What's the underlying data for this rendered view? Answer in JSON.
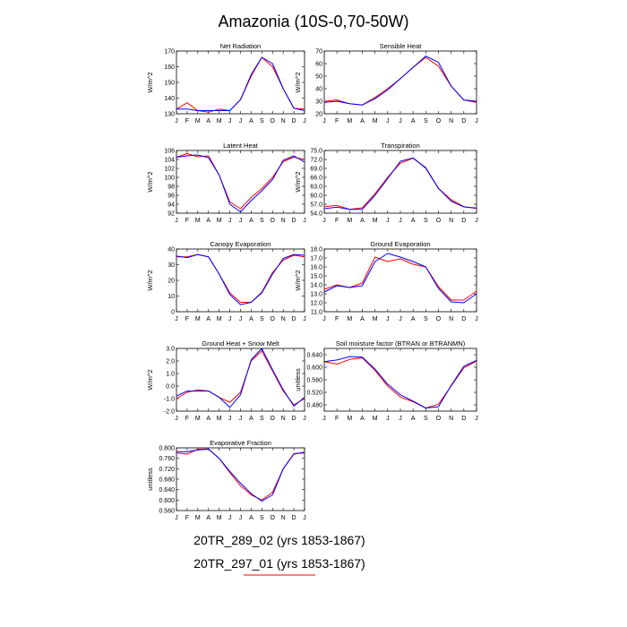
{
  "figure_title": "Amazonia (10S-0,70-50W)",
  "months": [
    "J",
    "F",
    "M",
    "A",
    "M",
    "J",
    "J",
    "A",
    "S",
    "O",
    "N",
    "D",
    "J"
  ],
  "legend": {
    "entries": [
      {
        "label": "20TR_289_02 (yrs 1853-1867)",
        "color": "#ff0000"
      },
      {
        "label": "20TR_297_01 (yrs 1853-1867)",
        "color": "#0000ff"
      }
    ]
  },
  "chart_data": [
    {
      "type": "line",
      "title": "Net Radiation",
      "ylabel": "W/m^2",
      "ylim": [
        130,
        170
      ],
      "yticks": [
        "130",
        "140",
        "150",
        "160",
        "170"
      ],
      "ytick_values": [
        130,
        140,
        150,
        160,
        170
      ],
      "x": [
        "J",
        "F",
        "M",
        "A",
        "M",
        "J",
        "J",
        "A",
        "S",
        "O",
        "N",
        "D",
        "J"
      ],
      "series": [
        {
          "name": "20TR_289_02",
          "color": "#ff0000",
          "values": [
            133,
            137,
            132,
            131,
            133,
            132,
            139,
            154,
            166,
            160,
            146,
            133.5,
            133
          ]
        },
        {
          "name": "20TR_297_01",
          "color": "#0000ff",
          "values": [
            133,
            133,
            132,
            132,
            132,
            132,
            139,
            155,
            166,
            162,
            146,
            133.5,
            132
          ]
        }
      ]
    },
    {
      "type": "line",
      "title": "Sensible Heat",
      "ylabel": "W/m^2",
      "ylim": [
        20,
        70
      ],
      "yticks": [
        "20",
        "30",
        "40",
        "50",
        "60",
        "70"
      ],
      "ytick_values": [
        20,
        30,
        40,
        50,
        60,
        70
      ],
      "x": [
        "J",
        "F",
        "M",
        "A",
        "M",
        "J",
        "J",
        "A",
        "S",
        "O",
        "N",
        "D",
        "J"
      ],
      "series": [
        {
          "name": "20TR_289_02",
          "color": "#ff0000",
          "values": [
            30,
            31,
            28,
            27,
            33,
            40,
            48,
            57,
            65,
            58,
            42,
            31,
            29
          ]
        },
        {
          "name": "20TR_297_01",
          "color": "#0000ff",
          "values": [
            29,
            30,
            28,
            27,
            32,
            39,
            48,
            57,
            66,
            61,
            42,
            31,
            30
          ]
        }
      ]
    },
    {
      "type": "line",
      "title": "Latent Heat",
      "ylabel": "W/m^2",
      "ylim": [
        92,
        106
      ],
      "yticks": [
        "92",
        "94",
        "96",
        "98",
        "100",
        "102",
        "104",
        "106"
      ],
      "ytick_values": [
        92,
        94,
        96,
        98,
        100,
        102,
        104,
        106
      ],
      "x": [
        "J",
        "F",
        "M",
        "A",
        "M",
        "J",
        "J",
        "A",
        "S",
        "O",
        "N",
        "D",
        "J"
      ],
      "series": [
        {
          "name": "20TR_289_02",
          "color": "#ff0000",
          "values": [
            104.5,
            105.3,
            104.6,
            104.8,
            100.5,
            94.5,
            93,
            95.5,
            97.5,
            100,
            103.5,
            104.5,
            104
          ]
        },
        {
          "name": "20TR_297_01",
          "color": "#0000ff",
          "values": [
            104.5,
            104.8,
            105,
            104.4,
            100.5,
            94,
            92.3,
            94.8,
            97,
            99.5,
            103.8,
            104.8,
            103.4
          ]
        }
      ]
    },
    {
      "type": "line",
      "title": "Transpiration",
      "ylabel": "W/m^2",
      "ylim": [
        54,
        75
      ],
      "yticks": [
        "54.0",
        "57.0",
        "60.0",
        "63.0",
        "66.0",
        "69.0",
        "72.0",
        "75.0"
      ],
      "ytick_values": [
        54,
        57,
        60,
        63,
        66,
        69,
        72,
        75
      ],
      "x": [
        "J",
        "F",
        "M",
        "A",
        "M",
        "J",
        "J",
        "A",
        "S",
        "O",
        "N",
        "D",
        "J"
      ],
      "series": [
        {
          "name": "20TR_289_02",
          "color": "#ff0000",
          "values": [
            56.2,
            56.6,
            55.3,
            55.8,
            60.5,
            66,
            70.8,
            72.4,
            69.3,
            62.3,
            58.5,
            56.2,
            55.6
          ]
        },
        {
          "name": "20TR_297_01",
          "color": "#0000ff",
          "values": [
            55.5,
            56,
            55.3,
            55.3,
            60,
            65.6,
            71.4,
            72.5,
            69.1,
            62.3,
            58,
            56.1,
            55.7
          ]
        }
      ]
    },
    {
      "type": "line",
      "title": "Canopy Evaporation",
      "ylabel": "W/m^2",
      "ylim": [
        0,
        40
      ],
      "yticks": [
        "0",
        "10",
        "20",
        "30",
        "40"
      ],
      "ytick_values": [
        0,
        10,
        20,
        30,
        40
      ],
      "x": [
        "J",
        "F",
        "M",
        "A",
        "M",
        "J",
        "J",
        "A",
        "S",
        "O",
        "N",
        "D",
        "J"
      ],
      "series": [
        {
          "name": "20TR_289_02",
          "color": "#ff0000",
          "values": [
            35,
            35,
            36.5,
            35,
            24,
            12,
            6,
            6,
            12.5,
            25,
            33,
            36,
            35
          ]
        },
        {
          "name": "20TR_297_01",
          "color": "#0000ff",
          "values": [
            35.5,
            34.5,
            36.5,
            35,
            24,
            11,
            4.5,
            6,
            12,
            24,
            34,
            36.5,
            36
          ]
        }
      ]
    },
    {
      "type": "line",
      "title": "Ground Evaporation",
      "ylabel": "W/m^2",
      "ylim": [
        11,
        18
      ],
      "yticks": [
        "11.0",
        "12.0",
        "13.0",
        "14.0",
        "15.0",
        "16.0",
        "17.0",
        "18.0"
      ],
      "ytick_values": [
        11,
        12,
        13,
        14,
        15,
        16,
        17,
        18
      ],
      "x": [
        "J",
        "F",
        "M",
        "A",
        "M",
        "J",
        "J",
        "A",
        "S",
        "O",
        "N",
        "D",
        "J"
      ],
      "series": [
        {
          "name": "20TR_289_02",
          "color": "#ff0000",
          "values": [
            13.5,
            14,
            13.7,
            14.2,
            17.1,
            16.6,
            16.9,
            16.3,
            16,
            13.8,
            12.3,
            12.3,
            13.3
          ]
        },
        {
          "name": "20TR_297_01",
          "color": "#0000ff",
          "values": [
            13.2,
            13.9,
            13.7,
            13.9,
            16.6,
            17.5,
            17.1,
            16.6,
            16,
            13.6,
            12.1,
            12.0,
            13.0
          ]
        }
      ]
    },
    {
      "type": "line",
      "title": "Ground Heat + Snow Melt",
      "ylabel": "W/m^2",
      "ylim": [
        -2,
        3
      ],
      "yticks": [
        "-2.0",
        "-1.0",
        "0.0",
        "1.0",
        "2.0",
        "3.0"
      ],
      "ytick_values": [
        -2,
        -1,
        0,
        1,
        2,
        3
      ],
      "x": [
        "J",
        "F",
        "M",
        "A",
        "M",
        "J",
        "J",
        "A",
        "S",
        "O",
        "N",
        "D",
        "J"
      ],
      "series": [
        {
          "name": "20TR_289_02",
          "color": "#ff0000",
          "values": [
            -1,
            -0.5,
            -0.3,
            -0.4,
            -0.9,
            -1.3,
            -0.5,
            2.0,
            2.8,
            1.2,
            -0.4,
            -1.5,
            -1.0
          ]
        },
        {
          "name": "20TR_297_01",
          "color": "#0000ff",
          "values": [
            -0.8,
            -0.4,
            -0.4,
            -0.4,
            -0.9,
            -1.7,
            -0.7,
            2.1,
            3.0,
            1.3,
            -0.3,
            -1.6,
            -0.9
          ]
        }
      ]
    },
    {
      "type": "line",
      "title": "Soil moisture factor (BTRAN or BTRANMN)",
      "ylabel": "unitless",
      "ylim": [
        0.46,
        0.66
      ],
      "yticks": [
        "0.480",
        "0.520",
        "0.560",
        "0.600",
        "0.640"
      ],
      "ytick_values": [
        0.48,
        0.52,
        0.56,
        0.6,
        0.64
      ],
      "x": [
        "J",
        "F",
        "M",
        "A",
        "M",
        "J",
        "J",
        "A",
        "S",
        "O",
        "N",
        "D",
        "J"
      ],
      "series": [
        {
          "name": "20TR_289_02",
          "color": "#ff0000",
          "values": [
            0.618,
            0.61,
            0.625,
            0.63,
            0.59,
            0.54,
            0.505,
            0.49,
            0.47,
            0.482,
            0.54,
            0.598,
            0.62
          ]
        },
        {
          "name": "20TR_297_01",
          "color": "#0000ff",
          "values": [
            0.618,
            0.623,
            0.634,
            0.632,
            0.594,
            0.546,
            0.512,
            0.492,
            0.47,
            0.474,
            0.542,
            0.603,
            0.622
          ]
        }
      ]
    },
    {
      "type": "line",
      "title": "Evaporative Fraction",
      "ylabel": "unitless",
      "ylim": [
        0.56,
        0.8
      ],
      "yticks": [
        "0.560",
        "0.600",
        "0.640",
        "0.680",
        "0.720",
        "0.760",
        "0.800"
      ],
      "ytick_values": [
        0.56,
        0.6,
        0.64,
        0.68,
        0.72,
        0.76,
        0.8
      ],
      "x": [
        "J",
        "F",
        "M",
        "A",
        "M",
        "J",
        "J",
        "A",
        "S",
        "O",
        "N",
        "D",
        "J"
      ],
      "series": [
        {
          "name": "20TR_289_02",
          "color": "#ff0000",
          "values": [
            0.78,
            0.776,
            0.795,
            0.796,
            0.76,
            0.705,
            0.655,
            0.62,
            0.6,
            0.63,
            0.72,
            0.778,
            0.78
          ]
        },
        {
          "name": "20TR_297_01",
          "color": "#0000ff",
          "values": [
            0.785,
            0.785,
            0.792,
            0.795,
            0.76,
            0.71,
            0.665,
            0.625,
            0.596,
            0.62,
            0.72,
            0.776,
            0.784
          ]
        }
      ]
    }
  ]
}
